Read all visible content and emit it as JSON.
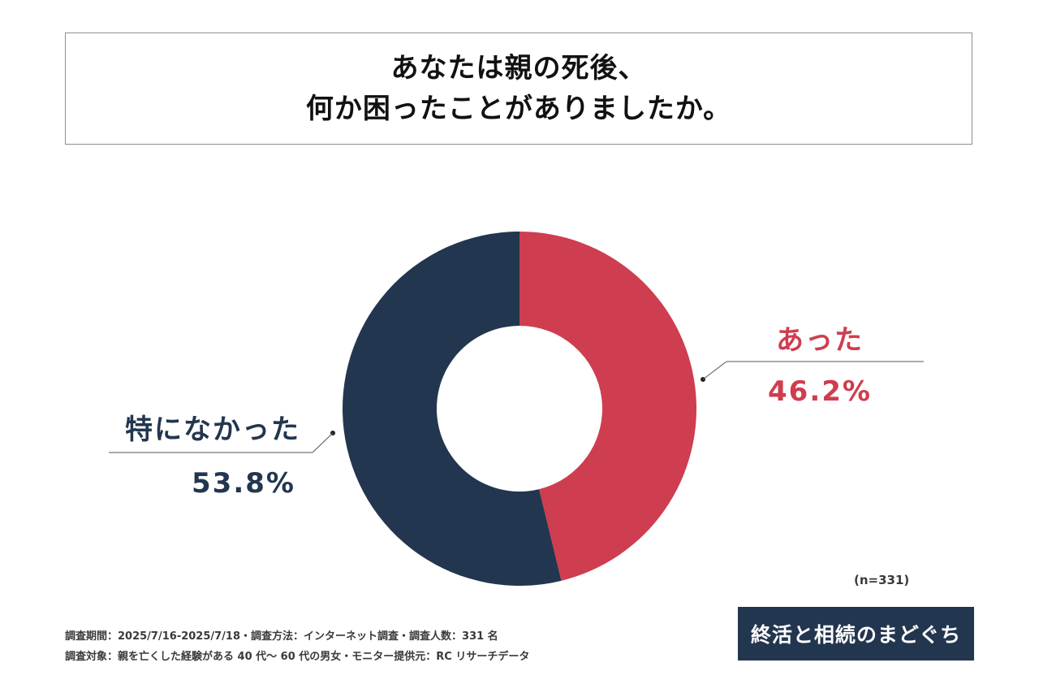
{
  "title": {
    "line1": "あなたは親の死後、",
    "line2": "何か困ったことがありましたか。"
  },
  "chart_data": {
    "type": "pie",
    "donut": true,
    "slices": [
      {
        "label": "あった",
        "value": 46.2,
        "display": "46.2%",
        "color": "#cf3d50"
      },
      {
        "label": "特になかった",
        "value": 53.8,
        "display": "53.8%",
        "color": "#23364f"
      }
    ],
    "sample_size": "(n=331)"
  },
  "footer": {
    "line1": "調査期間：2025/7/16-2025/7/18・調査方法：インターネット調査・調査人数：331 名",
    "line2": "調査対象：親を亡くした経験がある 40 代～ 60 代の男女・モニター提供元：RC リサーチデータ"
  },
  "logo": {
    "text": "終活と相続のまどぐち"
  }
}
